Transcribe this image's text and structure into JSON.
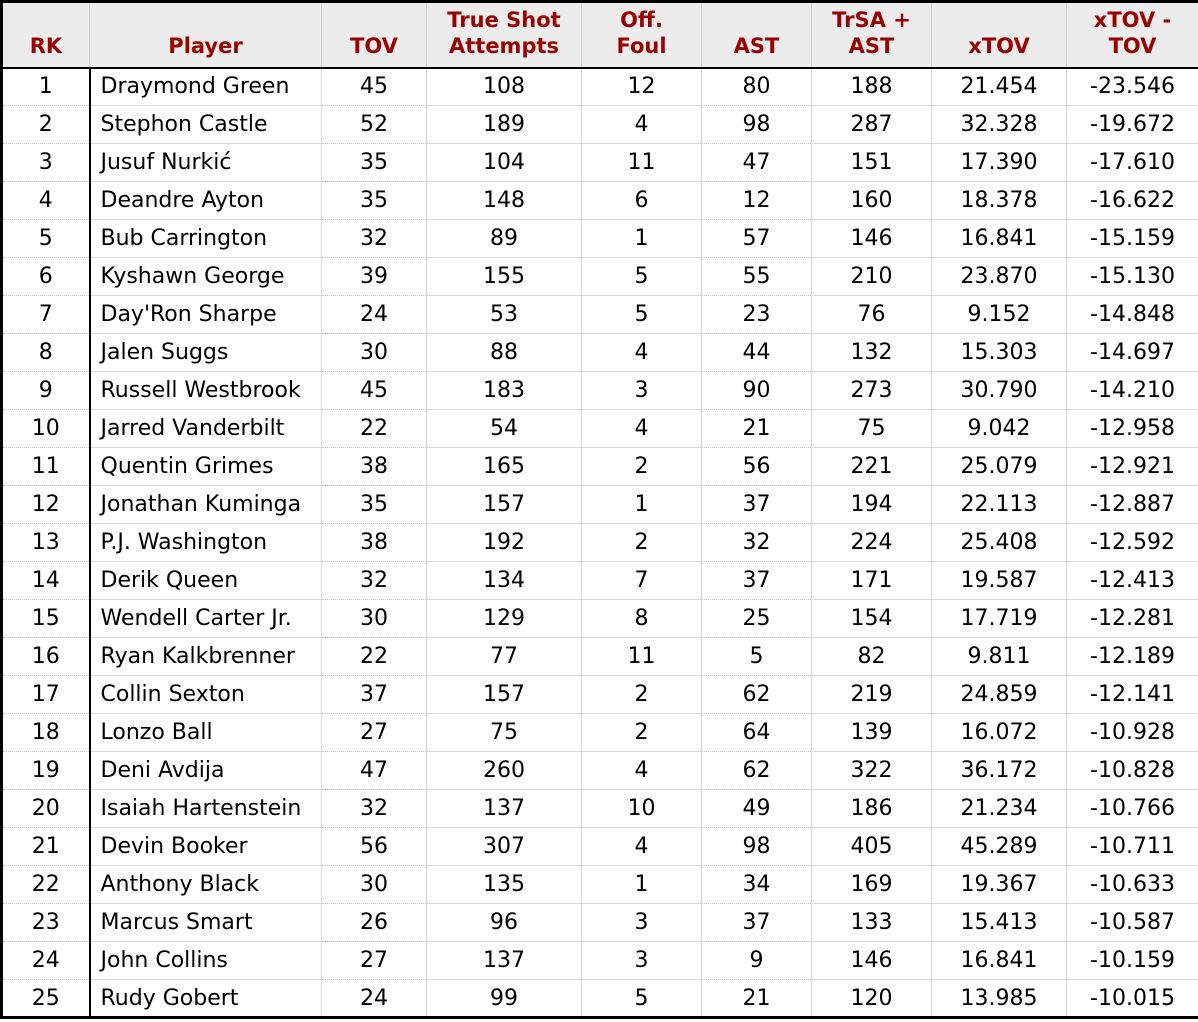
{
  "colors": {
    "header_text": "#990000",
    "header_background": "#ececec",
    "outer_border": "#000000",
    "grid_solid": "#d9d9d9",
    "grid_dotted": "#bdbdbd",
    "body_text": "#000000",
    "body_background": "#ffffff"
  },
  "chart_data": {
    "type": "table",
    "columns": [
      {
        "key": "rk",
        "label": "RK"
      },
      {
        "key": "player",
        "label": "Player"
      },
      {
        "key": "tov",
        "label": "TOV"
      },
      {
        "key": "tsa",
        "label": "True Shot\nAttempts"
      },
      {
        "key": "off_foul",
        "label": "Off.\nFoul"
      },
      {
        "key": "ast",
        "label": "AST"
      },
      {
        "key": "trsa_ast",
        "label": "TrSA +\nAST"
      },
      {
        "key": "xtov",
        "label": "xTOV"
      },
      {
        "key": "xtov_minus_tov",
        "label": "xTOV -\nTOV"
      }
    ],
    "rows": [
      [
        "1",
        "Draymond Green",
        "45",
        "108",
        "12",
        "80",
        "188",
        "21.454",
        "-23.546"
      ],
      [
        "2",
        "Stephon Castle",
        "52",
        "189",
        "4",
        "98",
        "287",
        "32.328",
        "-19.672"
      ],
      [
        "3",
        "Jusuf Nurkić",
        "35",
        "104",
        "11",
        "47",
        "151",
        "17.390",
        "-17.610"
      ],
      [
        "4",
        "Deandre Ayton",
        "35",
        "148",
        "6",
        "12",
        "160",
        "18.378",
        "-16.622"
      ],
      [
        "5",
        "Bub Carrington",
        "32",
        "89",
        "1",
        "57",
        "146",
        "16.841",
        "-15.159"
      ],
      [
        "6",
        "Kyshawn George",
        "39",
        "155",
        "5",
        "55",
        "210",
        "23.870",
        "-15.130"
      ],
      [
        "7",
        "Day'Ron Sharpe",
        "24",
        "53",
        "5",
        "23",
        "76",
        "9.152",
        "-14.848"
      ],
      [
        "8",
        "Jalen Suggs",
        "30",
        "88",
        "4",
        "44",
        "132",
        "15.303",
        "-14.697"
      ],
      [
        "9",
        "Russell Westbrook",
        "45",
        "183",
        "3",
        "90",
        "273",
        "30.790",
        "-14.210"
      ],
      [
        "10",
        "Jarred Vanderbilt",
        "22",
        "54",
        "4",
        "21",
        "75",
        "9.042",
        "-12.958"
      ],
      [
        "11",
        "Quentin Grimes",
        "38",
        "165",
        "2",
        "56",
        "221",
        "25.079",
        "-12.921"
      ],
      [
        "12",
        "Jonathan Kuminga",
        "35",
        "157",
        "1",
        "37",
        "194",
        "22.113",
        "-12.887"
      ],
      [
        "13",
        "P.J. Washington",
        "38",
        "192",
        "2",
        "32",
        "224",
        "25.408",
        "-12.592"
      ],
      [
        "14",
        "Derik Queen",
        "32",
        "134",
        "7",
        "37",
        "171",
        "19.587",
        "-12.413"
      ],
      [
        "15",
        "Wendell Carter Jr.",
        "30",
        "129",
        "8",
        "25",
        "154",
        "17.719",
        "-12.281"
      ],
      [
        "16",
        "Ryan Kalkbrenner",
        "22",
        "77",
        "11",
        "5",
        "82",
        "9.811",
        "-12.189"
      ],
      [
        "17",
        "Collin Sexton",
        "37",
        "157",
        "2",
        "62",
        "219",
        "24.859",
        "-12.141"
      ],
      [
        "18",
        "Lonzo Ball",
        "27",
        "75",
        "2",
        "64",
        "139",
        "16.072",
        "-10.928"
      ],
      [
        "19",
        "Deni Avdija",
        "47",
        "260",
        "4",
        "62",
        "322",
        "36.172",
        "-10.828"
      ],
      [
        "20",
        "Isaiah Hartenstein",
        "32",
        "137",
        "10",
        "49",
        "186",
        "21.234",
        "-10.766"
      ],
      [
        "21",
        "Devin Booker",
        "56",
        "307",
        "4",
        "98",
        "405",
        "45.289",
        "-10.711"
      ],
      [
        "22",
        "Anthony Black",
        "30",
        "135",
        "1",
        "34",
        "169",
        "19.367",
        "-10.633"
      ],
      [
        "23",
        "Marcus Smart",
        "26",
        "96",
        "3",
        "37",
        "133",
        "15.413",
        "-10.587"
      ],
      [
        "24",
        "John Collins",
        "27",
        "137",
        "3",
        "9",
        "146",
        "16.841",
        "-10.159"
      ],
      [
        "25",
        "Rudy Gobert",
        "24",
        "99",
        "5",
        "21",
        "120",
        "13.985",
        "-10.015"
      ]
    ]
  }
}
